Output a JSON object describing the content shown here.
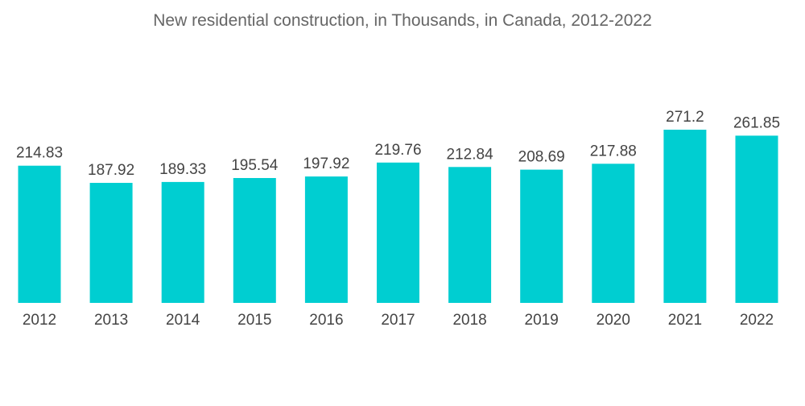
{
  "chart_data": {
    "type": "bar",
    "title": "New residential construction, in Thousands, in Canada, 2012-2022",
    "categories": [
      "2012",
      "2013",
      "2014",
      "2015",
      "2016",
      "2017",
      "2018",
      "2019",
      "2020",
      "2021",
      "2022"
    ],
    "values": [
      214.83,
      187.92,
      189.33,
      195.54,
      197.92,
      219.76,
      212.84,
      208.69,
      217.88,
      271.2,
      261.85
    ],
    "value_labels": [
      "214.83",
      "187.92",
      "189.33",
      "195.54",
      "197.92",
      "219.76",
      "212.84",
      "208.69",
      "217.88",
      "271.2",
      "261.85"
    ],
    "xlabel": "",
    "ylabel": "",
    "ylim": [
      0,
      271.2
    ],
    "grid": false,
    "legend": "none",
    "bar_color": "#00ced1"
  }
}
